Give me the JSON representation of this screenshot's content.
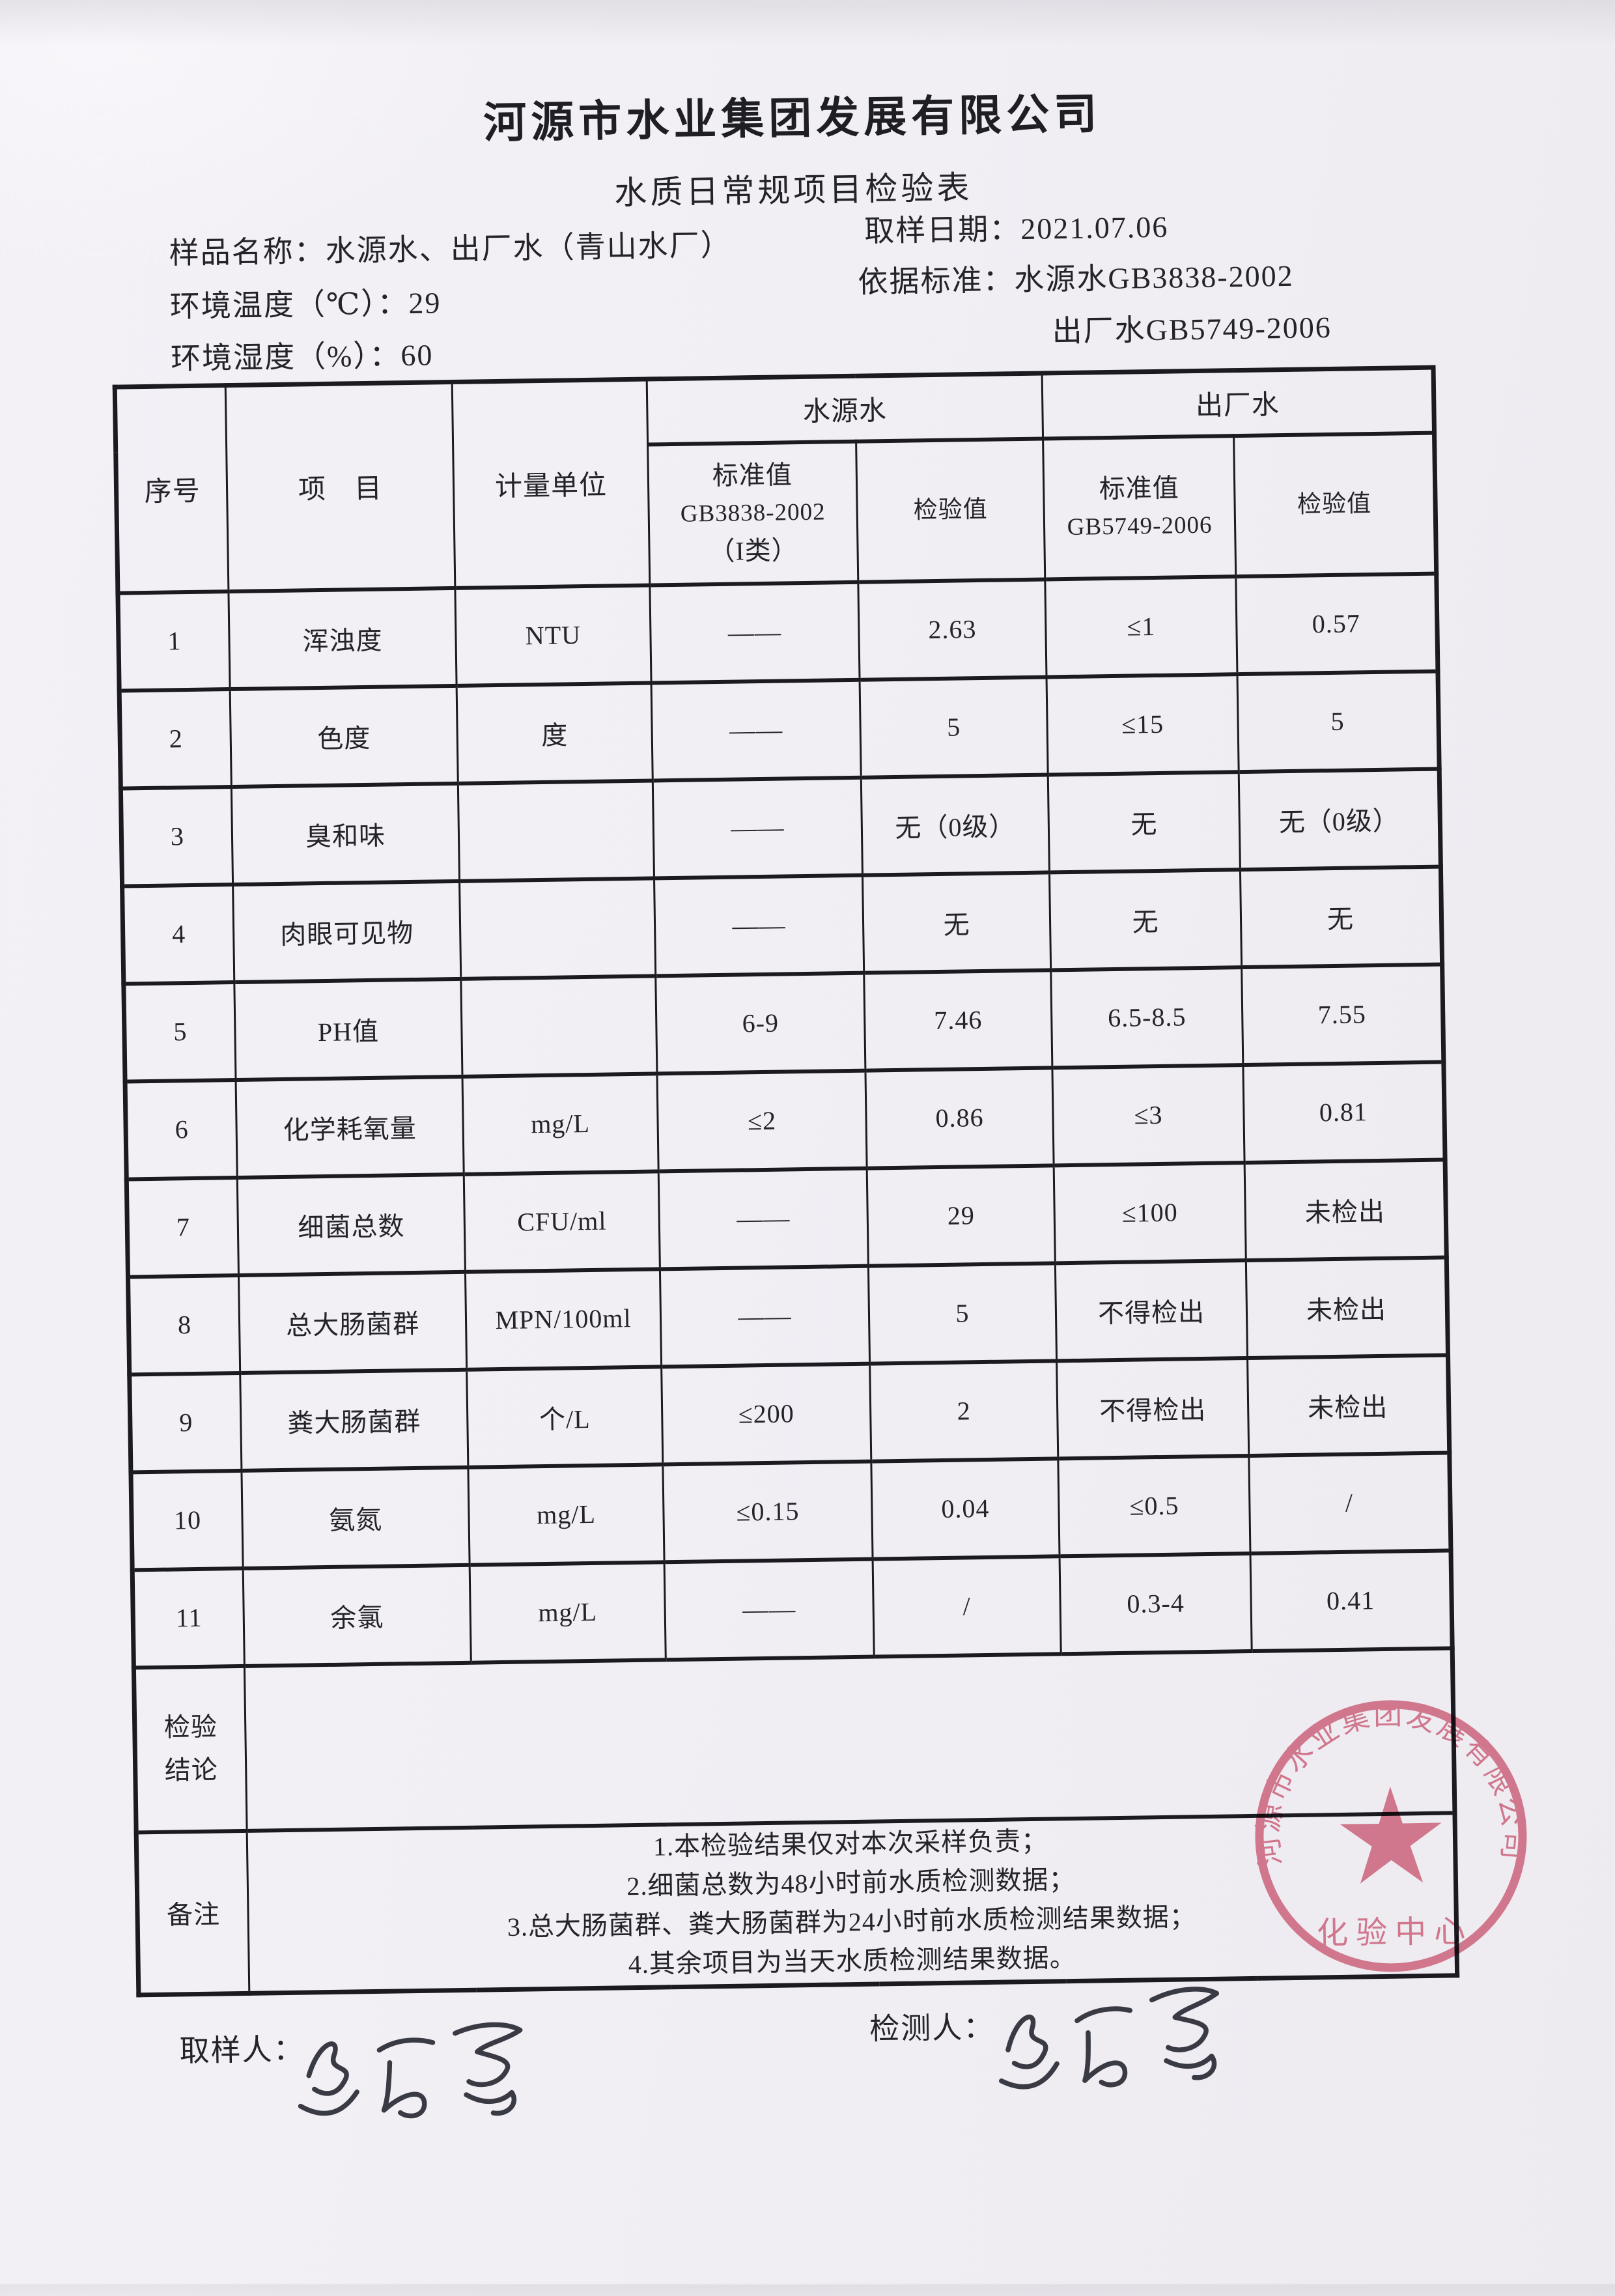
{
  "header": {
    "company": "河源市水业集团发展有限公司",
    "form_title": "水质日常规项目检验表"
  },
  "meta": {
    "sample_name_label": "样品名称：",
    "sample_name": "水源水、出厂水（青山水厂）",
    "sample_date_label": "取样日期：",
    "sample_date": "2021.07.06",
    "env_temp_label": "环境温度（℃）：",
    "env_temp": "29",
    "standard_label": "依据标准：",
    "standard_source_water": "水源水GB3838-2002",
    "env_humidity_label": "环境湿度（%）：",
    "env_humidity": "60",
    "standard_factory_water": "出厂水GB5749-2006"
  },
  "table": {
    "headers": {
      "no": "序号",
      "item": "项　目",
      "unit": "计量单位",
      "source_group": "水源水",
      "factory_group": "出厂水",
      "source_std_lines": [
        "标准值",
        "GB3838-2002",
        "（I类）"
      ],
      "source_val": "检验值",
      "factory_std_lines": [
        "标准值",
        "GB5749-2006"
      ],
      "factory_val": "检验值"
    },
    "rows": [
      {
        "no": "1",
        "item": "浑浊度",
        "unit": "NTU",
        "src_std": "——",
        "src_val": "2.63",
        "fac_std": "≤1",
        "fac_val": "0.57"
      },
      {
        "no": "2",
        "item": "色度",
        "unit": "度",
        "src_std": "——",
        "src_val": "5",
        "fac_std": "≤15",
        "fac_val": "5"
      },
      {
        "no": "3",
        "item": "臭和味",
        "unit": "",
        "src_std": "——",
        "src_val": "无（0级）",
        "fac_std": "无",
        "fac_val": "无（0级）"
      },
      {
        "no": "4",
        "item": "肉眼可见物",
        "unit": "",
        "src_std": "——",
        "src_val": "无",
        "fac_std": "无",
        "fac_val": "无"
      },
      {
        "no": "5",
        "item": "PH值",
        "unit": "",
        "src_std": "6-9",
        "src_val": "7.46",
        "fac_std": "6.5-8.5",
        "fac_val": "7.55"
      },
      {
        "no": "6",
        "item": "化学耗氧量",
        "unit": "mg/L",
        "src_std": "≤2",
        "src_val": "0.86",
        "fac_std": "≤3",
        "fac_val": "0.81"
      },
      {
        "no": "7",
        "item": "细菌总数",
        "unit": "CFU/ml",
        "src_std": "——",
        "src_val": "29",
        "fac_std": "≤100",
        "fac_val": "未检出"
      },
      {
        "no": "8",
        "item": "总大肠菌群",
        "unit": "MPN/100ml",
        "src_std": "——",
        "src_val": "5",
        "fac_std": "不得检出",
        "fac_val": "未检出"
      },
      {
        "no": "9",
        "item": "粪大肠菌群",
        "unit": "个/L",
        "src_std": "≤200",
        "src_val": "2",
        "fac_std": "不得检出",
        "fac_val": "未检出"
      },
      {
        "no": "10",
        "item": "氨氮",
        "unit": "mg/L",
        "src_std": "≤0.15",
        "src_val": "0.04",
        "fac_std": "≤0.5",
        "fac_val": "/"
      },
      {
        "no": "11",
        "item": "余氯",
        "unit": "mg/L",
        "src_std": "——",
        "src_val": "/",
        "fac_std": "0.3-4",
        "fac_val": "0.41"
      }
    ],
    "conclusion_label_line1": "检验",
    "conclusion_label_line2": "结论",
    "conclusion_value": "",
    "remark_label": "备注",
    "remarks": [
      "1.本检验结果仅对本次采样负责；",
      "2.细菌总数为48小时前水质检测数据；",
      "3.总大肠菌群、粪大肠菌群为24小时前水质检测结果数据；",
      "4.其余项目为当天水质检测结果数据。"
    ]
  },
  "footer": {
    "sampler_label": "取样人：",
    "tester_label": "检测人："
  },
  "stamp": {
    "ring_text": "河源市水业集团发展有限公司",
    "center_label": "化验中心",
    "color": "#c96079"
  }
}
